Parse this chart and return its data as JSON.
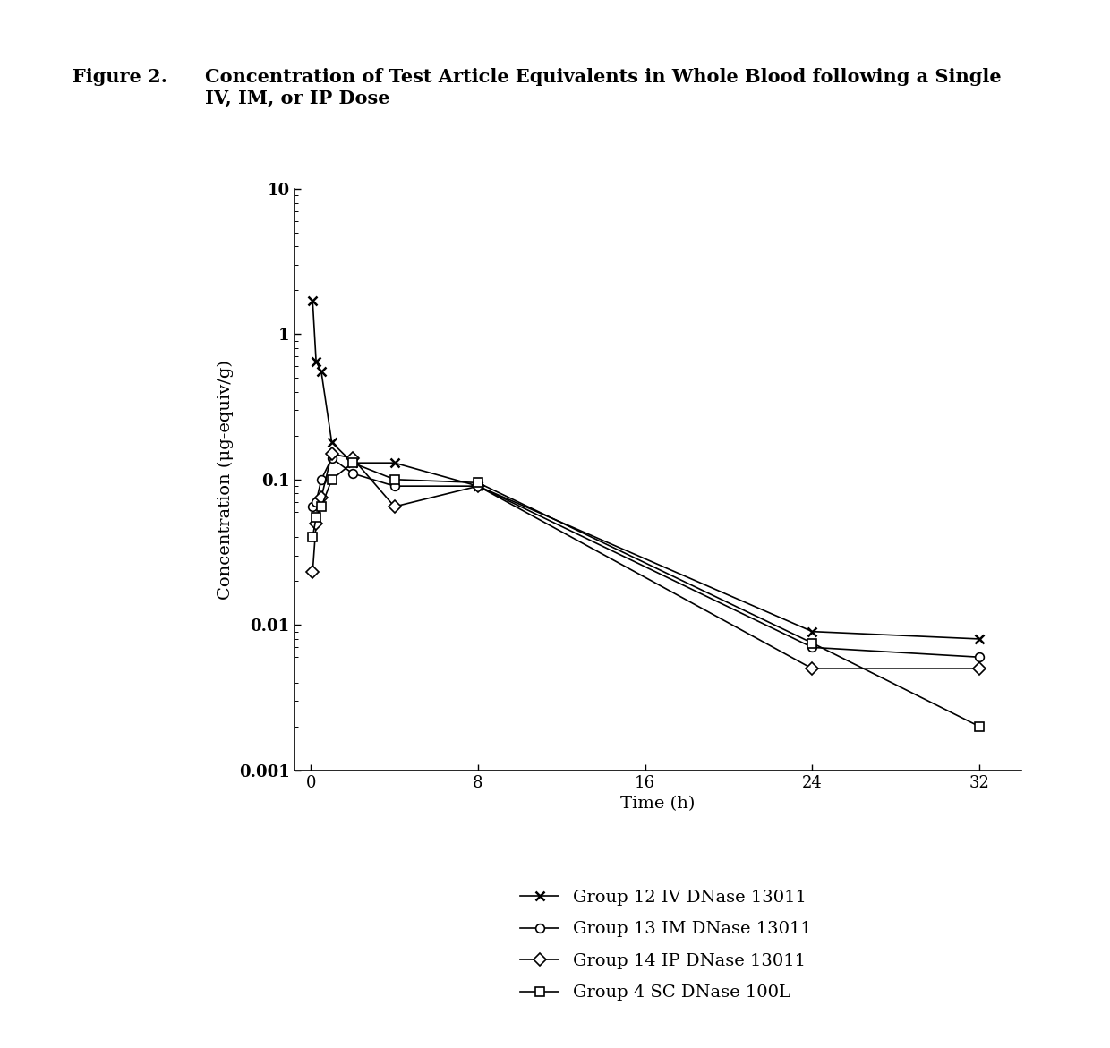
{
  "title_label": "Figure 2.",
  "title_text": "Concentration of Test Article Equivalents in Whole Blood following a Single\nIV, IM, or IP Dose",
  "xlabel": "Time (h)",
  "ylabel": "Concentration (μg-equiv/g)",
  "xlim": [
    -0.8,
    34
  ],
  "ylim": [
    0.001,
    10
  ],
  "xticks": [
    0,
    8,
    16,
    24,
    32
  ],
  "groups": [
    {
      "label": "Group 12 IV DNase 13011",
      "marker": "x",
      "x": [
        0.083,
        0.25,
        0.5,
        1,
        2,
        4,
        8,
        24,
        32
      ],
      "y": [
        1.7,
        0.65,
        0.55,
        0.18,
        0.13,
        0.13,
        0.09,
        0.009,
        0.008
      ]
    },
    {
      "label": "Group 13 IM DNase 13011",
      "marker": "o",
      "x": [
        0.083,
        0.25,
        0.5,
        1,
        2,
        4,
        8,
        24,
        32
      ],
      "y": [
        0.065,
        0.07,
        0.1,
        0.14,
        0.11,
        0.09,
        0.09,
        0.007,
        0.006
      ]
    },
    {
      "label": "Group 14 IP DNase 13011",
      "marker": "D",
      "x": [
        0.083,
        0.25,
        0.5,
        1,
        2,
        4,
        8,
        24,
        32
      ],
      "y": [
        0.023,
        0.05,
        0.075,
        0.15,
        0.14,
        0.065,
        0.09,
        0.005,
        0.005
      ]
    },
    {
      "label": "Group 4 SC DNase 100L",
      "marker": "s",
      "x": [
        0.083,
        0.25,
        0.5,
        1,
        2,
        4,
        8,
        24,
        32
      ],
      "y": [
        0.04,
        0.055,
        0.065,
        0.1,
        0.13,
        0.1,
        0.095,
        0.0075,
        0.002
      ]
    }
  ],
  "line_color": "black",
  "markersize": 7,
  "linewidth": 1.2,
  "background_color": "#ffffff",
  "legend_fontsize": 14,
  "axis_fontsize": 14,
  "tick_fontsize": 13,
  "title_fontsize": 15
}
